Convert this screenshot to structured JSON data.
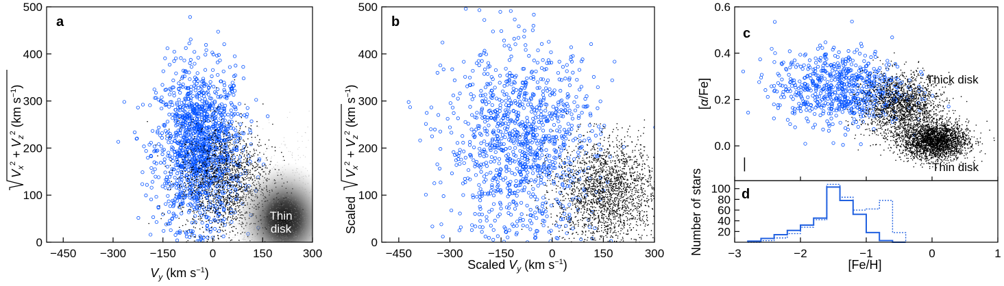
{
  "chart_data": [
    {
      "panel": "a",
      "type": "scatter",
      "xlabel": "V_y (km s^-1)",
      "ylabel": "sqrt(V_x^2 + V_z^2) (km s^-1)",
      "xlim": [
        -500,
        300
      ],
      "ylim": [
        0,
        500
      ],
      "xticks": [
        -450,
        -300,
        -150,
        0,
        150,
        300
      ],
      "yticks": [
        0,
        100,
        200,
        300,
        400,
        500
      ],
      "annotations": [
        {
          "text": "Thin",
          "x": 215,
          "y": 105
        },
        {
          "text": "disk",
          "x": 215,
          "y": 60
        }
      ],
      "series": [
        {
          "color": "#0050ff",
          "marker": "open-circle",
          "center": [
            -40,
            200
          ],
          "spread": [
            65,
            85
          ]
        },
        {
          "color": "#000000",
          "marker": "dot",
          "center": [
            40,
            130
          ],
          "spread": [
            70,
            60
          ]
        },
        {
          "color": "#808080",
          "marker": "density",
          "center": [
            215,
            50
          ],
          "spread": [
            70,
            55
          ]
        }
      ]
    },
    {
      "panel": "b",
      "type": "scatter",
      "xlabel": "Scaled V_y (km s^-1)",
      "ylabel": "Scaled sqrt(V_x^2 + V_z^2) (km s^-1)",
      "xlim": [
        -500,
        300
      ],
      "ylim": [
        0,
        500
      ],
      "xticks": [
        -450,
        -300,
        -150,
        0,
        150,
        300
      ],
      "yticks": [
        0,
        100,
        200,
        300,
        400,
        500
      ],
      "series": [
        {
          "color": "#0050ff",
          "marker": "open-circle",
          "center": [
            -90,
            210
          ],
          "spread": [
            110,
            100
          ]
        },
        {
          "color": "#000000",
          "marker": "dot",
          "center": [
            160,
            110
          ],
          "spread": [
            75,
            55
          ]
        }
      ]
    },
    {
      "panel": "c",
      "type": "scatter",
      "xlabel": "",
      "ylabel": "[alpha/Fe]",
      "xlim": [
        -3,
        1
      ],
      "ylim": [
        -0.15,
        0.6
      ],
      "yticks": [
        0.0,
        0.2,
        0.4,
        0.6
      ],
      "annotations": [
        {
          "text": "Thick disk",
          "x": 0.15,
          "y": 0.22
        },
        {
          "text": "Thin disk",
          "x": 0.15,
          "y": -0.1
        }
      ],
      "error_bar": {
        "x": -2.85,
        "y": -0.08,
        "dy": 0.03
      },
      "series": [
        {
          "color": "#0050ff",
          "marker": "open-circle",
          "center": [
            -1.4,
            0.25
          ],
          "spread": [
            0.5,
            0.08
          ]
        },
        {
          "color": "#000000",
          "marker": "dot",
          "group": "thick",
          "center": [
            -0.45,
            0.17
          ],
          "spread": [
            0.3,
            0.07
          ]
        },
        {
          "color": "#000000",
          "marker": "dot",
          "group": "thin",
          "center": [
            0.05,
            0.02
          ],
          "spread": [
            0.25,
            0.04
          ]
        }
      ]
    },
    {
      "panel": "d",
      "type": "histogram",
      "xlabel": "[Fe/H]",
      "ylabel": "Number of stars",
      "xlim": [
        -3,
        1
      ],
      "ylim": [
        0,
        115
      ],
      "xticks": [
        -3,
        -2,
        -1,
        0,
        1
      ],
      "yticks": [
        20,
        40,
        60,
        80,
        100
      ],
      "bin_edges": [
        -2.8,
        -2.6,
        -2.4,
        -2.2,
        -2.0,
        -1.8,
        -1.6,
        -1.4,
        -1.2,
        -1.0,
        -0.8,
        -0.6,
        -0.4
      ],
      "series": [
        {
          "style": "solid",
          "color": "#2060e0",
          "values": [
            2,
            7,
            14,
            22,
            32,
            45,
            103,
            78,
            52,
            18,
            3,
            0
          ]
        },
        {
          "style": "dotted",
          "color": "#2060e0",
          "values": [
            0,
            3,
            8,
            16,
            28,
            42,
            108,
            84,
            60,
            62,
            78,
            18
          ]
        }
      ]
    }
  ]
}
